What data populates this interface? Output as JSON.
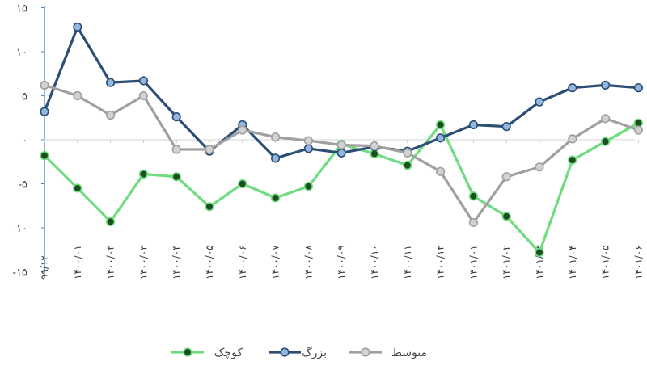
{
  "chart_data": {
    "type": "line",
    "categories": [
      "۹۹/۱۲",
      "۱۴۰۰/۰۱",
      "۱۴۰۰/۰۲",
      "۱۴۰۰/۰۳",
      "۱۴۰۰/۰۴",
      "۱۴۰۰/۰۵",
      "۱۴۰۰/۰۶",
      "۱۴۰۰/۰۷",
      "۱۴۰۰/۰۸",
      "۱۴۰۰/۰۹",
      "۱۴۰۰/۱۰",
      "۱۴۰۰/۱۱",
      "۱۴۰۰/۱۲",
      "۱۴۰۱/۰۱",
      "۱۴۰۱/۰۲",
      "۱۴۰۱/۰۳",
      "۱۴۰۱/۰۴",
      "۱۴۰۱/۰۵",
      "۱۴۰۱/۰۶"
    ],
    "yticks": [
      {
        "value": 15,
        "label": "۱۵"
      },
      {
        "value": 10,
        "label": "۱۰"
      },
      {
        "value": 5,
        "label": "۵"
      },
      {
        "value": 0,
        "label": "۰"
      },
      {
        "value": -5,
        "label": "-۵"
      },
      {
        "value": -10,
        "label": "-۱۰"
      },
      {
        "value": -15,
        "label": "-۱۵"
      }
    ],
    "ylim": [
      -15,
      15
    ],
    "series": [
      {
        "name": "کوچک",
        "color": "#6fdc7f",
        "marker": "#1c4f1f",
        "values": [
          -1.8,
          -5.5,
          -9.3,
          -3.9,
          -4.2,
          -7.6,
          -5.0,
          -6.6,
          -5.3,
          -0.5,
          -1.6,
          -2.9,
          1.7,
          -6.4,
          -8.7,
          -12.8,
          -2.3,
          -0.2,
          1.9
        ]
      },
      {
        "name": "بزرگ",
        "color": "#2c4d74",
        "marker": "#93b6de",
        "values": [
          3.2,
          12.8,
          6.5,
          6.7,
          2.6,
          -1.3,
          1.7,
          -2.1,
          -1.0,
          -1.5,
          -0.8,
          -1.3,
          0.2,
          1.7,
          1.5,
          4.3,
          5.9,
          6.2,
          5.9
        ]
      },
      {
        "name": "متوسط",
        "color": "#a0a0a0",
        "marker": "#d2d2d2",
        "values": [
          6.2,
          5.0,
          2.8,
          5.0,
          -1.1,
          -1.1,
          1.1,
          0.3,
          -0.1,
          -0.6,
          -0.7,
          -1.5,
          -3.6,
          -9.4,
          -4.2,
          -3.1,
          0.1,
          2.4,
          1.1
        ]
      }
    ],
    "legend_position": "bottom-center",
    "legend_order": [
      0,
      1,
      2
    ]
  }
}
